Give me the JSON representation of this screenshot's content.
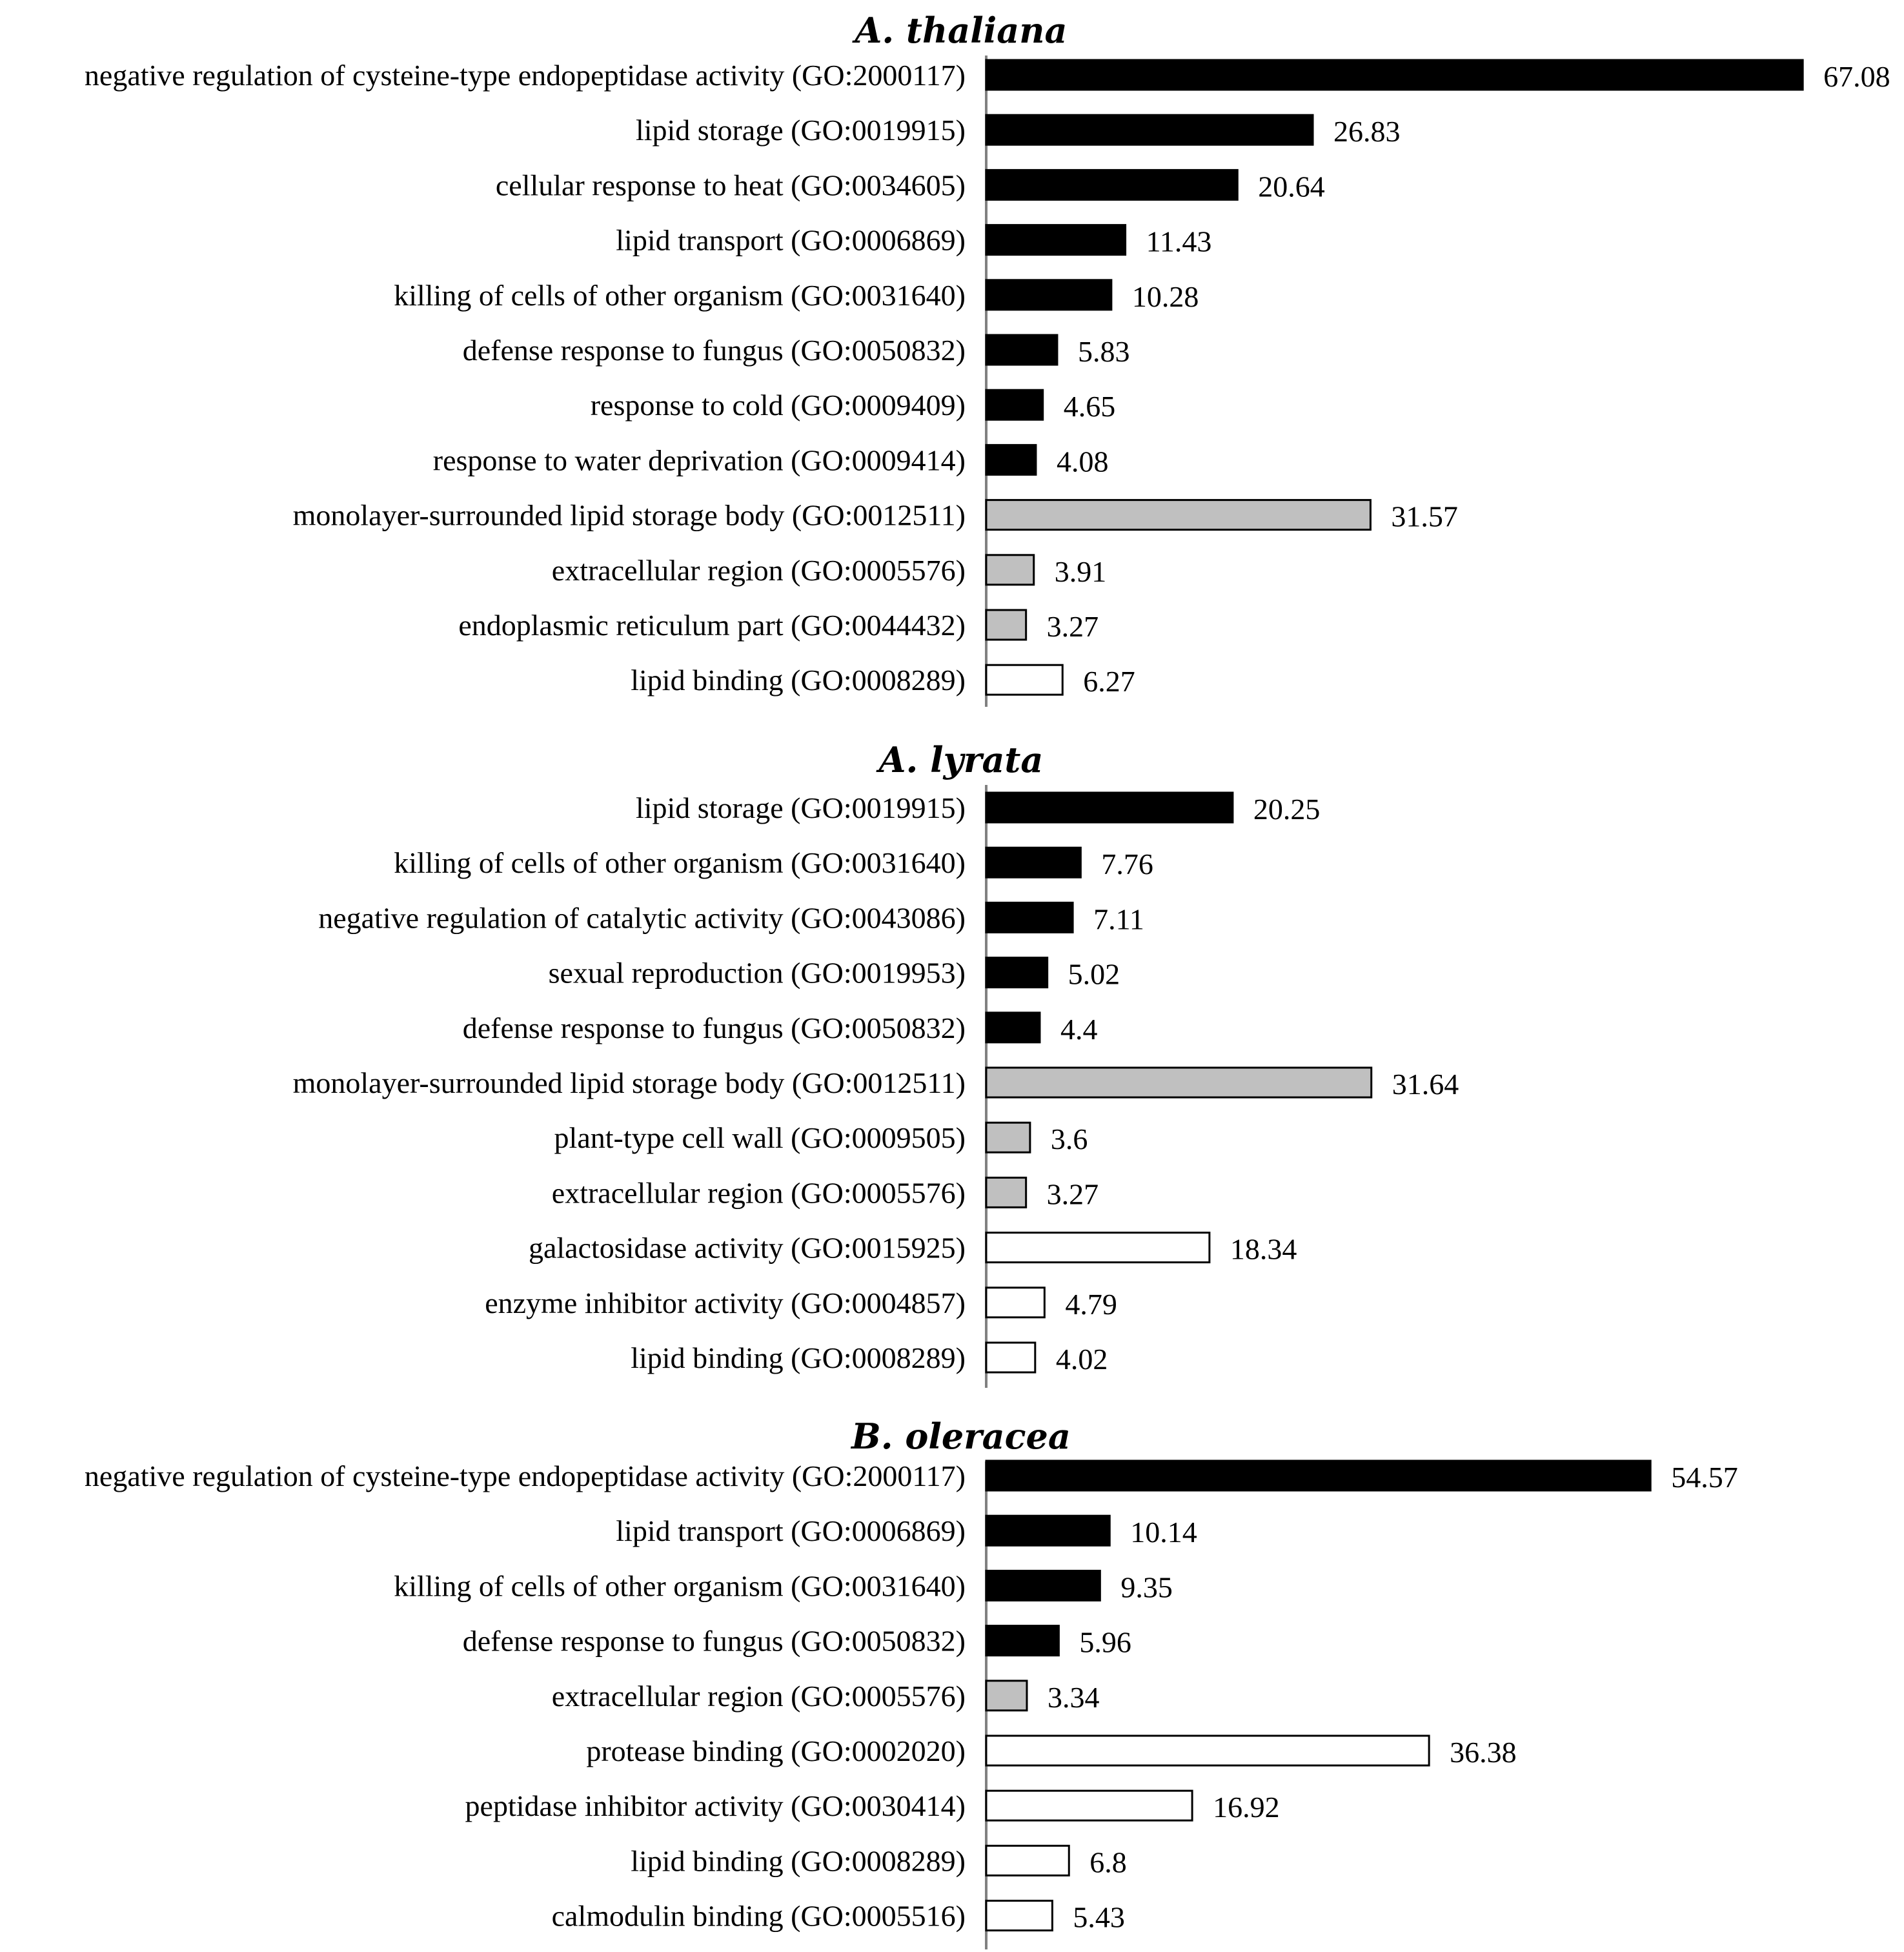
{
  "chart_data": [
    {
      "type": "bar",
      "orientation": "horizontal",
      "title": "A. thaliana",
      "categories": [
        "negative regulation of cysteine-type endopeptidase activity (GO:2000117)",
        "lipid storage (GO:0019915)",
        "cellular response to heat (GO:0034605)",
        "lipid transport (GO:0006869)",
        "killing of cells of other organism (GO:0031640)",
        "defense response to fungus (GO:0050832)",
        "response to cold (GO:0009409)",
        "response to water deprivation (GO:0009414)",
        "monolayer-surrounded lipid storage body (GO:0012511)",
        "extracellular region (GO:0005576)",
        "endoplasmic reticulum part (GO:0044432)",
        "lipid binding (GO:0008289)"
      ],
      "values": [
        67.08,
        26.83,
        20.64,
        11.43,
        10.28,
        5.83,
        4.65,
        4.08,
        31.57,
        3.91,
        3.27,
        6.27
      ],
      "value_labels": [
        "67.08",
        "26.83",
        "20.64",
        "11.43",
        "10.28",
        "5.83",
        "4.65",
        "4.08",
        "31.57",
        "3.91",
        "3.27",
        "6.27"
      ],
      "bar_groups": [
        "bp",
        "bp",
        "bp",
        "bp",
        "bp",
        "bp",
        "bp",
        "bp",
        "cc",
        "cc",
        "cc",
        "mf"
      ]
    },
    {
      "type": "bar",
      "orientation": "horizontal",
      "title": "A. lyrata",
      "categories": [
        "lipid storage (GO:0019915)",
        "killing of cells of other organism (GO:0031640)",
        "negative regulation of catalytic activity (GO:0043086)",
        "sexual reproduction (GO:0019953)",
        "defense response to fungus (GO:0050832)",
        "monolayer-surrounded lipid storage body (GO:0012511)",
        "plant-type cell wall (GO:0009505)",
        "extracellular region (GO:0005576)",
        "galactosidase activity (GO:0015925)",
        "enzyme inhibitor activity (GO:0004857)",
        "lipid binding (GO:0008289)"
      ],
      "values": [
        20.25,
        7.76,
        7.11,
        5.02,
        4.4,
        31.64,
        3.6,
        3.27,
        18.34,
        4.79,
        4.02
      ],
      "value_labels": [
        "20.25",
        "7.76",
        "7.11",
        "5.02",
        "4.4",
        "31.64",
        "3.6",
        "3.27",
        "18.34",
        "4.79",
        "4.02"
      ],
      "bar_groups": [
        "bp",
        "bp",
        "bp",
        "bp",
        "bp",
        "cc",
        "cc",
        "cc",
        "mf",
        "mf",
        "mf"
      ]
    },
    {
      "type": "bar",
      "orientation": "horizontal",
      "title": "B. oleracea",
      "categories": [
        "negative regulation of cysteine-type endopeptidase activity (GO:2000117)",
        "lipid transport (GO:0006869)",
        "killing of cells of other organism (GO:0031640)",
        "defense response to fungus (GO:0050832)",
        "extracellular region (GO:0005576)",
        "protease binding (GO:0002020)",
        "peptidase inhibitor activity (GO:0030414)",
        "lipid binding (GO:0008289)",
        "calmodulin binding (GO:0005516)"
      ],
      "values": [
        54.57,
        10.14,
        9.35,
        5.96,
        3.34,
        36.38,
        16.92,
        6.8,
        5.43
      ],
      "value_labels": [
        "54.57",
        "10.14",
        "9.35",
        "5.96",
        "3.34",
        "36.38",
        "16.92",
        "6.8",
        "5.43"
      ],
      "bar_groups": [
        "bp",
        "bp",
        "bp",
        "bp",
        "cc",
        "mf",
        "mf",
        "mf",
        "mf"
      ]
    }
  ],
  "colors": {
    "bp": "#000000",
    "cc": "#c0c0c0",
    "mf": "#ffffff",
    "stroke": "#000000",
    "axis": "#808080"
  }
}
